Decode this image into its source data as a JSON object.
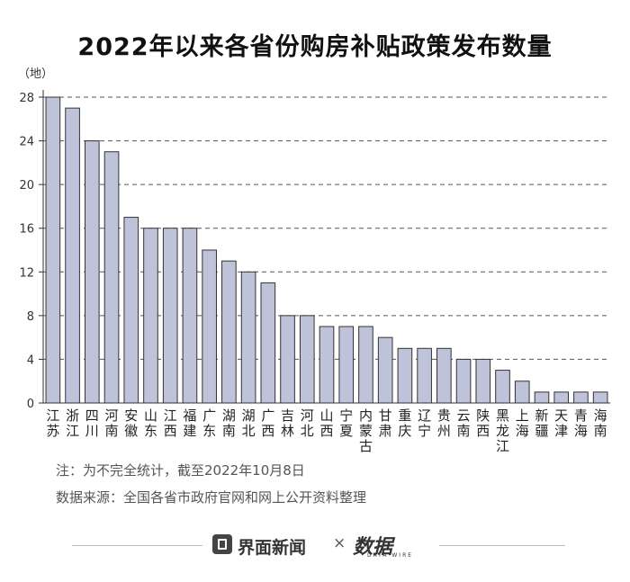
{
  "chart_data": {
    "type": "bar",
    "title": "2022年以来各省份购房补贴政策发布数量",
    "ylabel": "（地）",
    "ylim": [
      0,
      28
    ],
    "yticks": [
      0,
      4,
      8,
      12,
      16,
      20,
      24,
      28
    ],
    "grid": true,
    "categories": [
      "江苏",
      "浙江",
      "四川",
      "河南",
      "安徽",
      "山东",
      "江西",
      "福建",
      "广东",
      "湖南",
      "湖北",
      "广西",
      "吉林",
      "河北",
      "山西",
      "宁夏",
      "内蒙古",
      "甘肃",
      "重庆",
      "辽宁",
      "贵州",
      "云南",
      "陕西",
      "黑龙江",
      "上海",
      "新疆",
      "天津",
      "青海",
      "海南"
    ],
    "values": [
      28,
      27,
      24,
      23,
      17,
      16,
      16,
      16,
      14,
      13,
      12,
      11,
      8,
      8,
      7,
      7,
      7,
      6,
      5,
      5,
      5,
      4,
      4,
      3,
      2,
      1,
      1,
      1,
      1
    ]
  },
  "notes": {
    "note": "注：为不完全统计，截至2022年10月8日",
    "source": "数据来源：全国各省市政府官网和网上公开资料整理"
  },
  "footer": {
    "brand": "界面新闻",
    "times": "×",
    "partner": "数据",
    "partner_sub": "DATA WIRE"
  },
  "colors": {
    "bar_fill": "#bec3d9",
    "bar_stroke": "#333333",
    "grid": "#555555"
  }
}
